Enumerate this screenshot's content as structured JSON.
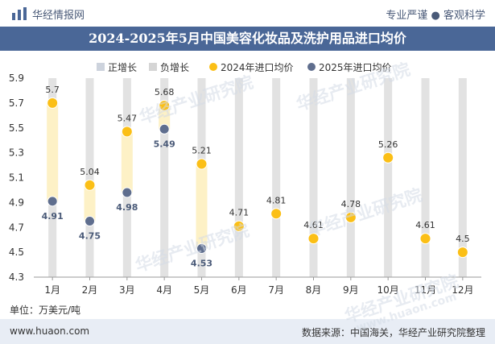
{
  "header": {
    "brand": "华经情报网",
    "tagline": "专业严谨 ● 客观科学"
  },
  "title": "2024-2025年5月中国美容化妆品及洗护用品进口均价",
  "unit": "单位：万美元/吨",
  "footer": {
    "site": "www.huaon.com",
    "source": "数据来源：中国海关，华经产业研究院整理"
  },
  "watermarks": [
    "华经产业研究院",
    "华经产业研究院",
    "华经产业研究院",
    "华经产业研究院",
    "www.huaon.com"
  ],
  "colors": {
    "title_bar": "#4a6797",
    "positive": "#fdf1c6",
    "negative": "#d5d5d5",
    "series_2024": "#fbbf16",
    "series_2025": "#5f6e8e",
    "label_2025": "#4a5a78"
  },
  "chart_data": {
    "type": "line",
    "categories": [
      "1月",
      "2月",
      "3月",
      "4月",
      "5月",
      "6月",
      "7月",
      "8月",
      "9月",
      "10月",
      "11月",
      "12月"
    ],
    "ylim": [
      4.3,
      5.9
    ],
    "yticks": [
      "4.3",
      "4.5",
      "4.7",
      "4.9",
      "5.1",
      "5.3",
      "5.5",
      "5.7",
      "5.9"
    ],
    "legend_position": "top",
    "legend": [
      "正增长",
      "负增长",
      "2024年进口均价",
      "2025年进口均价"
    ],
    "series": [
      {
        "name": "2024年进口均价",
        "values": [
          5.7,
          5.04,
          5.47,
          5.68,
          5.21,
          4.71,
          4.81,
          4.61,
          4.78,
          5.26,
          4.61,
          4.5
        ]
      },
      {
        "name": "2025年进口均价",
        "values": [
          4.91,
          4.75,
          4.98,
          5.49,
          4.53,
          null,
          null,
          null,
          null,
          null,
          null,
          null
        ]
      }
    ],
    "labels_2024": [
      "5.7",
      "5.04",
      "5.47",
      "5.68",
      "5.21",
      "4.71",
      "4.81",
      "4.61",
      "4.78",
      "5.26",
      "4.61",
      "4.5"
    ],
    "labels_2025": [
      "4.91",
      "4.75",
      "4.98",
      "5.49",
      "4.53",
      "",
      "",
      "",
      "",
      "",
      "",
      ""
    ],
    "growth": [
      "负增长",
      "负增长",
      "负增长",
      "负增长",
      "负增长",
      "",
      "",
      "",
      "",
      "",
      "",
      ""
    ]
  }
}
